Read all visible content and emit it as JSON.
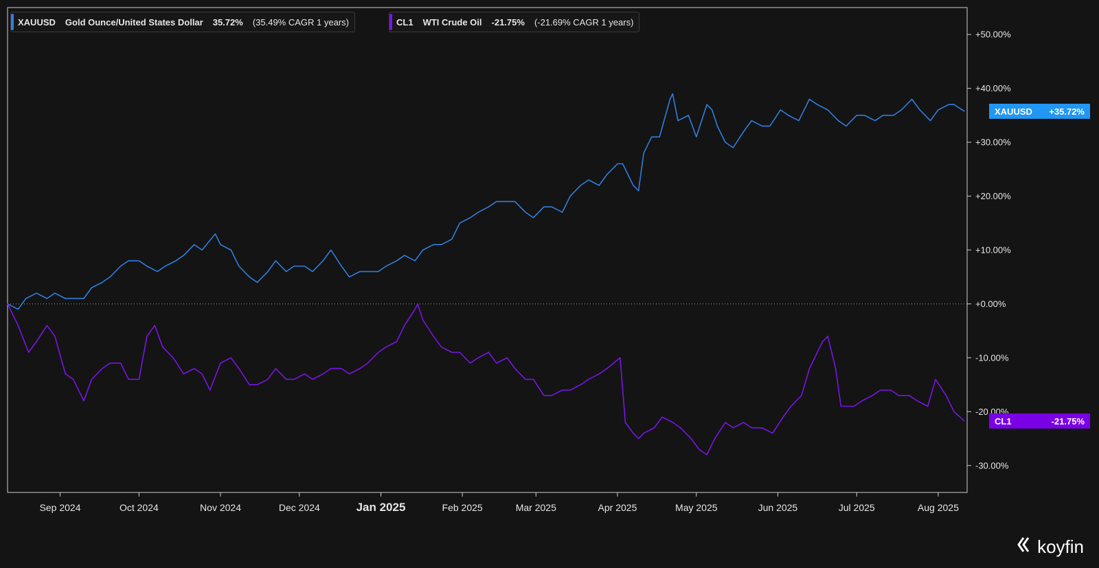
{
  "legend": [
    {
      "ticker": "XAUUSD",
      "name": "Gold Ounce/United States Dollar",
      "change": "35.72%",
      "cagr": "(35.49% CAGR 1 years)",
      "color": "#2f7fe0"
    },
    {
      "ticker": "CL1",
      "name": "WTI Crude Oil",
      "change": "-21.75%",
      "cagr": "(-21.69% CAGR 1 years)",
      "color": "#7a14e6"
    }
  ],
  "tags": {
    "xau": {
      "ticker": "XAUUSD",
      "value": "+35.72%",
      "color": "#2196f3"
    },
    "cl1": {
      "ticker": "CL1",
      "value": "-21.75%",
      "color": "#7a00e6"
    }
  },
  "logo": {
    "text": "koyfin",
    "icon": "koyfin-logo-icon"
  },
  "chart_data": {
    "type": "line",
    "x_range": [
      "2024-08-12",
      "2025-08-12"
    ],
    "ylim": [
      -35,
      55
    ],
    "y_ticks": [
      -30,
      -20,
      -10,
      0,
      10,
      20,
      30,
      40,
      50
    ],
    "y_tick_labels": [
      "-30.00%",
      "-20.00%",
      "-10.00%",
      "+0.00%",
      "+10.00%",
      "+20.00%",
      "+30.00%",
      "+40.00%",
      "+50.00%"
    ],
    "x_ticks": [
      {
        "label": "Sep 2024",
        "date": "2024-09-01",
        "bold": false
      },
      {
        "label": "Oct 2024",
        "date": "2024-10-01",
        "bold": false
      },
      {
        "label": "Nov 2024",
        "date": "2024-11-01",
        "bold": false
      },
      {
        "label": "Dec 2024",
        "date": "2024-12-01",
        "bold": false
      },
      {
        "label": "Jan 2025",
        "date": "2025-01-01",
        "bold": true
      },
      {
        "label": "Feb 2025",
        "date": "2025-02-01",
        "bold": false
      },
      {
        "label": "Mar 2025",
        "date": "2025-03-01",
        "bold": false
      },
      {
        "label": "Apr 2025",
        "date": "2025-04-01",
        "bold": false
      },
      {
        "label": "May 2025",
        "date": "2025-05-01",
        "bold": false
      },
      {
        "label": "Jun 2025",
        "date": "2025-06-01",
        "bold": false
      },
      {
        "label": "Jul 2025",
        "date": "2025-07-01",
        "bold": false
      },
      {
        "label": "Aug 2025",
        "date": "2025-08-01",
        "bold": false
      }
    ],
    "zero_line": true,
    "grid": false,
    "series": [
      {
        "name": "XAUUSD",
        "color": "#2f7fe0",
        "points": [
          [
            "2024-08-12",
            0
          ],
          [
            "2024-08-16",
            -1
          ],
          [
            "2024-08-19",
            1
          ],
          [
            "2024-08-23",
            2
          ],
          [
            "2024-08-27",
            1
          ],
          [
            "2024-08-30",
            2
          ],
          [
            "2024-09-03",
            1
          ],
          [
            "2024-09-06",
            1
          ],
          [
            "2024-09-10",
            1
          ],
          [
            "2024-09-13",
            3
          ],
          [
            "2024-09-17",
            4
          ],
          [
            "2024-09-20",
            5
          ],
          [
            "2024-09-24",
            7
          ],
          [
            "2024-09-27",
            8
          ],
          [
            "2024-10-01",
            8
          ],
          [
            "2024-10-04",
            7
          ],
          [
            "2024-10-08",
            6
          ],
          [
            "2024-10-11",
            7
          ],
          [
            "2024-10-15",
            8
          ],
          [
            "2024-10-18",
            9
          ],
          [
            "2024-10-22",
            11
          ],
          [
            "2024-10-25",
            10
          ],
          [
            "2024-10-30",
            13
          ],
          [
            "2024-11-01",
            11
          ],
          [
            "2024-11-05",
            10
          ],
          [
            "2024-11-08",
            7
          ],
          [
            "2024-11-12",
            5
          ],
          [
            "2024-11-15",
            4
          ],
          [
            "2024-11-19",
            6
          ],
          [
            "2024-11-22",
            8
          ],
          [
            "2024-11-26",
            6
          ],
          [
            "2024-11-29",
            7
          ],
          [
            "2024-12-03",
            7
          ],
          [
            "2024-12-06",
            6
          ],
          [
            "2024-12-10",
            8
          ],
          [
            "2024-12-13",
            10
          ],
          [
            "2024-12-17",
            7
          ],
          [
            "2024-12-20",
            5
          ],
          [
            "2024-12-24",
            6
          ],
          [
            "2024-12-27",
            6
          ],
          [
            "2024-12-31",
            6
          ],
          [
            "2025-01-03",
            7
          ],
          [
            "2025-01-07",
            8
          ],
          [
            "2025-01-10",
            9
          ],
          [
            "2025-01-14",
            8
          ],
          [
            "2025-01-17",
            10
          ],
          [
            "2025-01-21",
            11
          ],
          [
            "2025-01-24",
            11
          ],
          [
            "2025-01-28",
            12
          ],
          [
            "2025-01-31",
            15
          ],
          [
            "2025-02-04",
            16
          ],
          [
            "2025-02-07",
            17
          ],
          [
            "2025-02-11",
            18
          ],
          [
            "2025-02-14",
            19
          ],
          [
            "2025-02-18",
            19
          ],
          [
            "2025-02-21",
            19
          ],
          [
            "2025-02-25",
            17
          ],
          [
            "2025-02-28",
            16
          ],
          [
            "2025-03-04",
            18
          ],
          [
            "2025-03-07",
            18
          ],
          [
            "2025-03-11",
            17
          ],
          [
            "2025-03-14",
            20
          ],
          [
            "2025-03-18",
            22
          ],
          [
            "2025-03-21",
            23
          ],
          [
            "2025-03-25",
            22
          ],
          [
            "2025-03-28",
            24
          ],
          [
            "2025-04-01",
            26
          ],
          [
            "2025-04-03",
            26
          ],
          [
            "2025-04-07",
            22
          ],
          [
            "2025-04-09",
            21
          ],
          [
            "2025-04-11",
            28
          ],
          [
            "2025-04-14",
            31
          ],
          [
            "2025-04-17",
            31
          ],
          [
            "2025-04-21",
            38
          ],
          [
            "2025-04-22",
            39
          ],
          [
            "2025-04-24",
            34
          ],
          [
            "2025-04-28",
            35
          ],
          [
            "2025-05-01",
            31
          ],
          [
            "2025-05-05",
            37
          ],
          [
            "2025-05-07",
            36
          ],
          [
            "2025-05-09",
            33
          ],
          [
            "2025-05-12",
            30
          ],
          [
            "2025-05-15",
            29
          ],
          [
            "2025-05-19",
            32
          ],
          [
            "2025-05-22",
            34
          ],
          [
            "2025-05-26",
            33
          ],
          [
            "2025-05-29",
            33
          ],
          [
            "2025-06-02",
            36
          ],
          [
            "2025-06-05",
            35
          ],
          [
            "2025-06-09",
            34
          ],
          [
            "2025-06-13",
            38
          ],
          [
            "2025-06-16",
            37
          ],
          [
            "2025-06-20",
            36
          ],
          [
            "2025-06-24",
            34
          ],
          [
            "2025-06-27",
            33
          ],
          [
            "2025-07-01",
            35
          ],
          [
            "2025-07-04",
            35
          ],
          [
            "2025-07-08",
            34
          ],
          [
            "2025-07-11",
            35
          ],
          [
            "2025-07-15",
            35
          ],
          [
            "2025-07-18",
            36
          ],
          [
            "2025-07-22",
            38
          ],
          [
            "2025-07-25",
            36
          ],
          [
            "2025-07-29",
            34
          ],
          [
            "2025-08-01",
            36
          ],
          [
            "2025-08-05",
            37
          ],
          [
            "2025-08-07",
            37
          ],
          [
            "2025-08-11",
            35.72
          ]
        ]
      },
      {
        "name": "CL1",
        "color": "#7a14e6",
        "points": [
          [
            "2024-08-12",
            0
          ],
          [
            "2024-08-16",
            -4
          ],
          [
            "2024-08-20",
            -9
          ],
          [
            "2024-08-23",
            -7
          ],
          [
            "2024-08-27",
            -4
          ],
          [
            "2024-08-30",
            -6
          ],
          [
            "2024-09-03",
            -13
          ],
          [
            "2024-09-06",
            -14
          ],
          [
            "2024-09-10",
            -18
          ],
          [
            "2024-09-13",
            -14
          ],
          [
            "2024-09-17",
            -12
          ],
          [
            "2024-09-20",
            -11
          ],
          [
            "2024-09-24",
            -11
          ],
          [
            "2024-09-27",
            -14
          ],
          [
            "2024-10-01",
            -14
          ],
          [
            "2024-10-04",
            -6
          ],
          [
            "2024-10-07",
            -4
          ],
          [
            "2024-10-10",
            -8
          ],
          [
            "2024-10-14",
            -10
          ],
          [
            "2024-10-18",
            -13
          ],
          [
            "2024-10-22",
            -12
          ],
          [
            "2024-10-25",
            -13
          ],
          [
            "2024-10-28",
            -16
          ],
          [
            "2024-11-01",
            -11
          ],
          [
            "2024-11-05",
            -10
          ],
          [
            "2024-11-08",
            -12
          ],
          [
            "2024-11-12",
            -15
          ],
          [
            "2024-11-15",
            -15
          ],
          [
            "2024-11-19",
            -14
          ],
          [
            "2024-11-22",
            -12
          ],
          [
            "2024-11-26",
            -14
          ],
          [
            "2024-11-29",
            -14
          ],
          [
            "2024-12-03",
            -13
          ],
          [
            "2024-12-06",
            -14
          ],
          [
            "2024-12-10",
            -13
          ],
          [
            "2024-12-13",
            -12
          ],
          [
            "2024-12-17",
            -12
          ],
          [
            "2024-12-20",
            -13
          ],
          [
            "2024-12-24",
            -12
          ],
          [
            "2024-12-27",
            -11
          ],
          [
            "2024-12-31",
            -9
          ],
          [
            "2025-01-03",
            -8
          ],
          [
            "2025-01-07",
            -7
          ],
          [
            "2025-01-10",
            -4
          ],
          [
            "2025-01-14",
            -1
          ],
          [
            "2025-01-15",
            0
          ],
          [
            "2025-01-17",
            -3
          ],
          [
            "2025-01-21",
            -6
          ],
          [
            "2025-01-24",
            -8
          ],
          [
            "2025-01-28",
            -9
          ],
          [
            "2025-01-31",
            -9
          ],
          [
            "2025-02-04",
            -11
          ],
          [
            "2025-02-07",
            -10
          ],
          [
            "2025-02-11",
            -9
          ],
          [
            "2025-02-14",
            -11
          ],
          [
            "2025-02-18",
            -10
          ],
          [
            "2025-02-21",
            -12
          ],
          [
            "2025-02-25",
            -14
          ],
          [
            "2025-02-28",
            -14
          ],
          [
            "2025-03-04",
            -17
          ],
          [
            "2025-03-07",
            -17
          ],
          [
            "2025-03-11",
            -16
          ],
          [
            "2025-03-14",
            -16
          ],
          [
            "2025-03-18",
            -15
          ],
          [
            "2025-03-21",
            -14
          ],
          [
            "2025-03-25",
            -13
          ],
          [
            "2025-03-28",
            -12
          ],
          [
            "2025-04-02",
            -10
          ],
          [
            "2025-04-04",
            -22
          ],
          [
            "2025-04-07",
            -24
          ],
          [
            "2025-04-09",
            -25
          ],
          [
            "2025-04-11",
            -24
          ],
          [
            "2025-04-15",
            -23
          ],
          [
            "2025-04-18",
            -21
          ],
          [
            "2025-04-22",
            -22
          ],
          [
            "2025-04-25",
            -23
          ],
          [
            "2025-04-29",
            -25
          ],
          [
            "2025-05-02",
            -27
          ],
          [
            "2025-05-05",
            -28
          ],
          [
            "2025-05-08",
            -25
          ],
          [
            "2025-05-12",
            -22
          ],
          [
            "2025-05-15",
            -23
          ],
          [
            "2025-05-19",
            -22
          ],
          [
            "2025-05-22",
            -23
          ],
          [
            "2025-05-26",
            -23
          ],
          [
            "2025-05-30",
            -24
          ],
          [
            "2025-06-03",
            -21
          ],
          [
            "2025-06-06",
            -19
          ],
          [
            "2025-06-10",
            -17
          ],
          [
            "2025-06-13",
            -12
          ],
          [
            "2025-06-18",
            -7
          ],
          [
            "2025-06-20",
            -6
          ],
          [
            "2025-06-23",
            -12
          ],
          [
            "2025-06-25",
            -19
          ],
          [
            "2025-06-30",
            -19
          ],
          [
            "2025-07-03",
            -18
          ],
          [
            "2025-07-07",
            -17
          ],
          [
            "2025-07-10",
            -16
          ],
          [
            "2025-07-14",
            -16
          ],
          [
            "2025-07-17",
            -17
          ],
          [
            "2025-07-21",
            -17
          ],
          [
            "2025-07-24",
            -18
          ],
          [
            "2025-07-28",
            -19
          ],
          [
            "2025-07-31",
            -14
          ],
          [
            "2025-08-04",
            -17
          ],
          [
            "2025-08-07",
            -20
          ],
          [
            "2025-08-11",
            -21.75
          ]
        ]
      }
    ]
  }
}
